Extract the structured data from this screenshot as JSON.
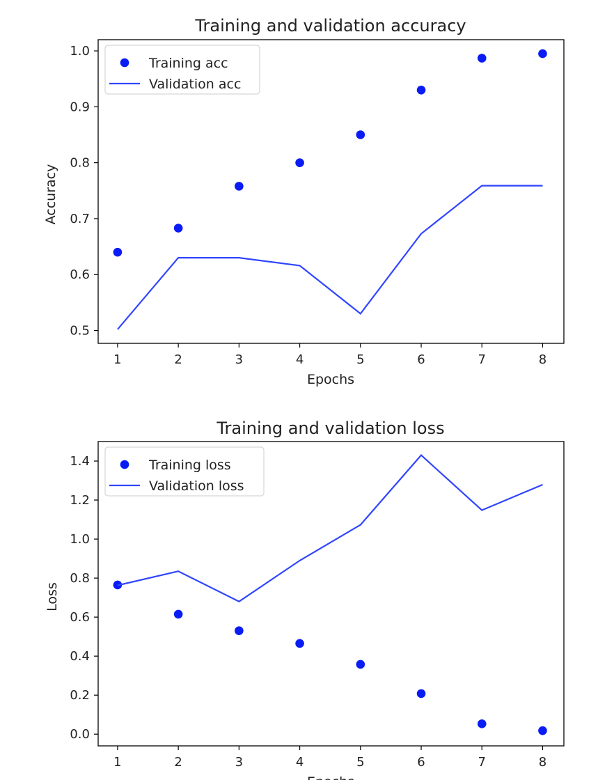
{
  "chart_data": [
    {
      "type": "line",
      "title": "Training and validation accuracy",
      "xlabel": "Epochs",
      "ylabel": "Accuracy",
      "xlim": [
        0.68,
        8.35
      ],
      "ylim": [
        0.477,
        1.02
      ],
      "x_ticks": [
        "1",
        "2",
        "3",
        "4",
        "5",
        "6",
        "7",
        "8"
      ],
      "y_ticks": [
        "0.5",
        "0.6",
        "0.7",
        "0.8",
        "0.9",
        "1.0"
      ],
      "x": [
        1,
        2,
        3,
        4,
        5,
        6,
        7,
        8
      ],
      "series": [
        {
          "name": "Training acc",
          "style": "points",
          "color": "#0a1cf5",
          "values": [
            0.64,
            0.683,
            0.758,
            0.8,
            0.85,
            0.93,
            0.987,
            0.995
          ]
        },
        {
          "name": "Validation acc",
          "style": "line",
          "color": "#3045ff",
          "values": [
            0.502,
            0.63,
            0.63,
            0.616,
            0.53,
            0.673,
            0.759,
            0.759
          ]
        }
      ],
      "legend_position": "upper-left",
      "grid": false
    },
    {
      "type": "line",
      "title": "Training and validation loss",
      "xlabel": "Epochs",
      "ylabel": "Loss",
      "xlim": [
        0.68,
        8.35
      ],
      "ylim": [
        -0.06,
        1.5
      ],
      "x_ticks": [
        "1",
        "2",
        "3",
        "4",
        "5",
        "6",
        "7",
        "8"
      ],
      "y_ticks": [
        "0.0",
        "0.2",
        "0.4",
        "0.6",
        "0.8",
        "1.0",
        "1.2",
        "1.4"
      ],
      "x": [
        1,
        2,
        3,
        4,
        5,
        6,
        7,
        8
      ],
      "series": [
        {
          "name": "Training loss",
          "style": "points",
          "color": "#0a1cf5",
          "values": [
            0.765,
            0.615,
            0.53,
            0.465,
            0.358,
            0.208,
            0.053,
            0.018
          ]
        },
        {
          "name": "Validation loss",
          "style": "line",
          "color": "#3045ff",
          "values": [
            0.763,
            0.835,
            0.68,
            0.89,
            1.073,
            1.43,
            1.148,
            1.279
          ]
        }
      ],
      "legend_position": "upper-left",
      "grid": false
    }
  ]
}
